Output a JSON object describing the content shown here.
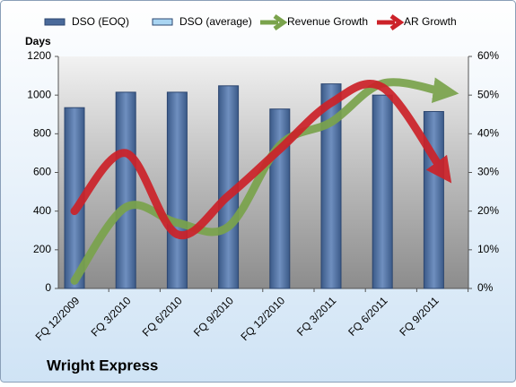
{
  "chart_data": {
    "type": "bar-line",
    "title": "Wright Express",
    "y_label": "Days",
    "categories": [
      "FQ 12/2009",
      "FQ 3/2010",
      "FQ 6/2010",
      "FQ 9/2010",
      "FQ 12/2010",
      "FQ 3/2011",
      "FQ 6/2011",
      "FQ 9/2011"
    ],
    "series": [
      {
        "name": "DSO (EOQ)",
        "color": "#4a6a9a",
        "kind": "bar",
        "values": [
          935,
          1015,
          1015,
          1048,
          928,
          1058,
          1000,
          915
        ]
      },
      {
        "name": "DSO (average)",
        "color": "#a9d5f2",
        "kind": "bar",
        "values": [
          null,
          null,
          null,
          null,
          null,
          null,
          null,
          null
        ]
      },
      {
        "name": "Revenue Growth",
        "color": "#7aa34c",
        "kind": "arrow",
        "axis": "y2",
        "values": [
          2,
          21,
          17,
          16,
          37,
          43,
          53,
          51
        ]
      },
      {
        "name": "AR Growth",
        "color": "#cc2229",
        "kind": "arrow",
        "axis": "y2",
        "values": [
          20,
          35,
          14,
          24,
          36,
          48,
          52,
          31
        ]
      }
    ],
    "ylim": [
      0,
      1200
    ],
    "yticks": [
      0,
      200,
      400,
      600,
      800,
      1000,
      1200
    ],
    "y2lim": [
      0,
      60
    ],
    "y2ticks": [
      {
        "value": 0,
        "label": "0%"
      },
      {
        "value": 10,
        "label": "10%"
      },
      {
        "value": 20,
        "label": "20%"
      },
      {
        "value": 30,
        "label": "30%"
      },
      {
        "value": 40,
        "label": "40%"
      },
      {
        "value": 50,
        "label": "50%"
      },
      {
        "value": 60,
        "label": "60%"
      }
    ],
    "legend": "top"
  }
}
